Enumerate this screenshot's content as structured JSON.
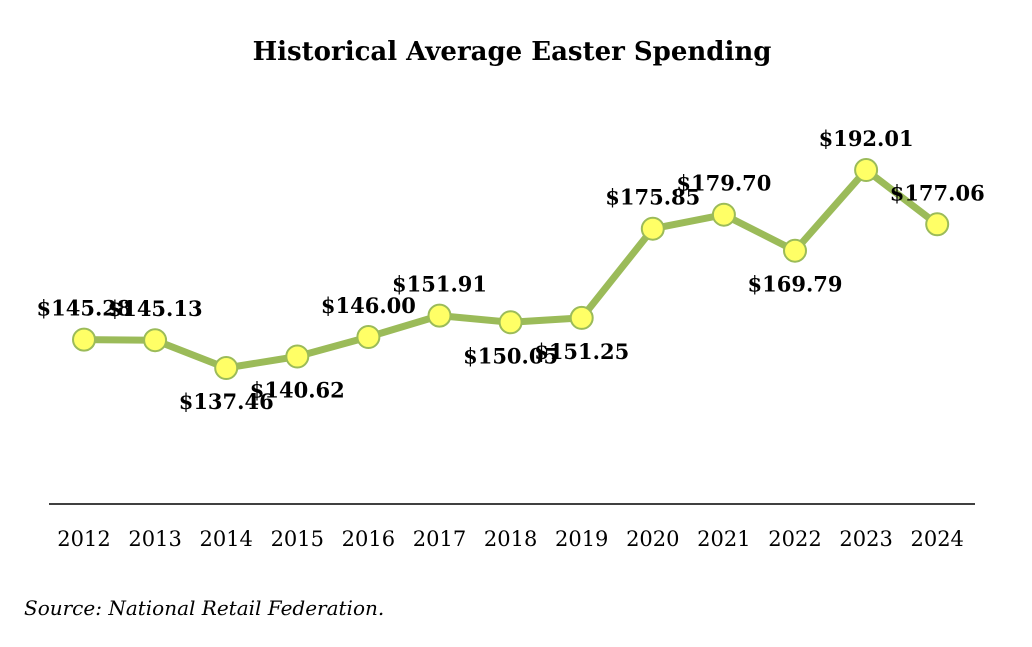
{
  "chart_data": {
    "type": "line",
    "title": "Historical Average Easter Spending",
    "xlabel": "",
    "ylabel": "",
    "categories": [
      "2012",
      "2013",
      "2014",
      "2015",
      "2016",
      "2017",
      "2018",
      "2019",
      "2020",
      "2021",
      "2022",
      "2023",
      "2024"
    ],
    "series": [
      {
        "values": [
          145.28,
          145.13,
          137.46,
          140.62,
          146.0,
          151.91,
          150.05,
          151.25,
          175.85,
          179.7,
          169.79,
          192.01,
          177.06
        ],
        "labels": [
          "$145.28",
          "$145.13",
          "$137.46",
          "$140.62",
          "$146.00",
          "$151.91",
          "$150.05",
          "$151.25",
          "$175.85",
          "$179.70",
          "$169.79",
          "$192.01",
          "$177.06"
        ],
        "label_positions": [
          "above",
          "above",
          "below",
          "below",
          "above",
          "above",
          "below",
          "below",
          "above",
          "above",
          "below",
          "above",
          "above"
        ]
      }
    ],
    "ylim": [
      100,
      200
    ],
    "grid": false,
    "legend": "none",
    "source": "Source: National Retail Federation.",
    "colors": {
      "line": "#9bbb59",
      "marker_fill": "#ffff66",
      "marker_stroke": "#9bbb59",
      "axis": "#000000"
    }
  }
}
